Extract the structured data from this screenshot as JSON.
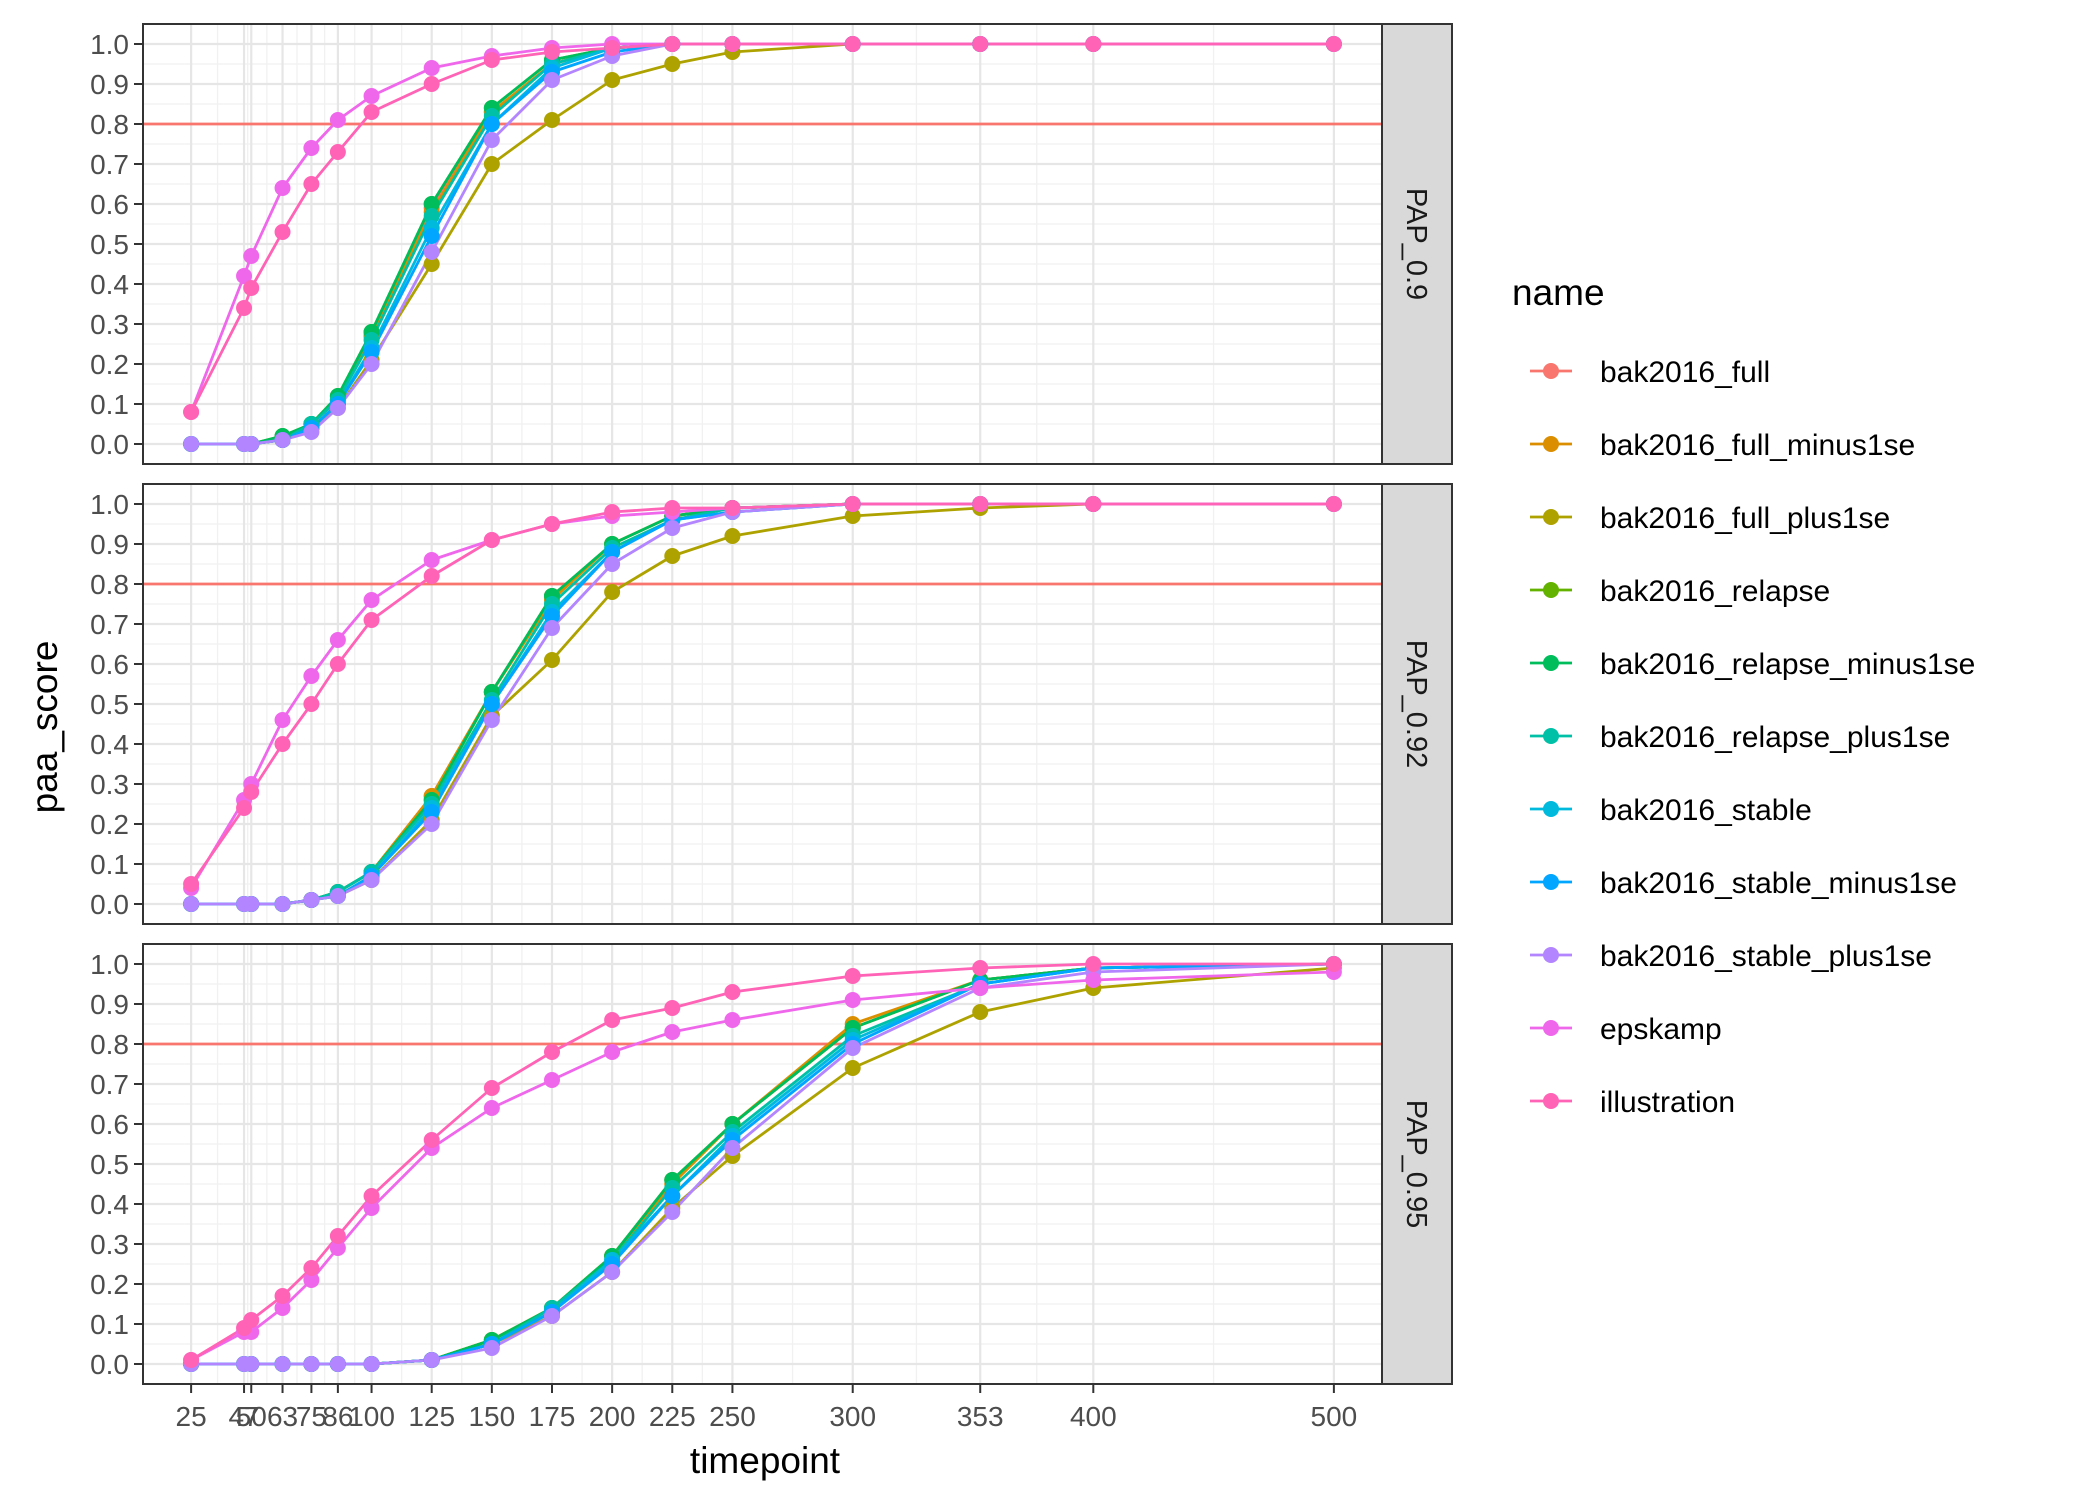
{
  "chart_data": {
    "type": "line",
    "xlabel": "timepoint",
    "ylabel": "paa_score",
    "x": [
      25,
      47,
      50,
      63,
      75,
      86,
      100,
      125,
      150,
      175,
      200,
      225,
      250,
      300,
      353,
      400,
      500
    ],
    "x_tick_labels": [
      "25",
      "47",
      "50",
      "63",
      "75",
      "86",
      "100",
      "125",
      "150",
      "175",
      "200",
      "225",
      "250",
      "300",
      "353",
      "400",
      "500"
    ],
    "xlim": [
      5,
      520
    ],
    "ylim": [
      -0.05,
      1.05
    ],
    "y_ticks": [
      0.0,
      0.1,
      0.2,
      0.3,
      0.4,
      0.5,
      0.6,
      0.7,
      0.8,
      0.9,
      1.0
    ],
    "y_tick_labels": [
      "0.0",
      "0.1",
      "0.2",
      "0.3",
      "0.4",
      "0.5",
      "0.6",
      "0.7",
      "0.8",
      "0.9",
      "1.0"
    ],
    "hline": 0.8,
    "hline_color": "#F8766D",
    "grid": true,
    "legend": {
      "title": "name",
      "position": "right",
      "items": [
        {
          "name": "bak2016_full",
          "color": "#F8766D"
        },
        {
          "name": "bak2016_full_minus1se",
          "color": "#DB8E00"
        },
        {
          "name": "bak2016_full_plus1se",
          "color": "#AEA200"
        },
        {
          "name": "bak2016_relapse",
          "color": "#64B200"
        },
        {
          "name": "bak2016_relapse_minus1se",
          "color": "#00BD5C"
        },
        {
          "name": "bak2016_relapse_plus1se",
          "color": "#00C1A7"
        },
        {
          "name": "bak2016_stable",
          "color": "#00BADE"
        },
        {
          "name": "bak2016_stable_minus1se",
          "color": "#00A6FF"
        },
        {
          "name": "bak2016_stable_plus1se",
          "color": "#B385FF"
        },
        {
          "name": "epskamp",
          "color": "#EF67EB"
        },
        {
          "name": "illustration",
          "color": "#FF63B6"
        }
      ]
    },
    "panels": [
      {
        "strip": "PAP_0.9",
        "series": [
          {
            "name": "bak2016_full",
            "values": [
              0.0,
              0.0,
              0.0,
              0.01,
              0.05,
              0.11,
              0.27,
              0.59,
              0.83,
              0.95,
              0.99,
              1.0,
              1.0,
              1.0,
              1.0,
              1.0,
              1.0
            ]
          },
          {
            "name": "bak2016_full_minus1se",
            "values": [
              0.0,
              0.0,
              0.0,
              0.01,
              0.05,
              0.11,
              0.27,
              0.58,
              0.83,
              0.95,
              0.99,
              1.0,
              1.0,
              1.0,
              1.0,
              1.0,
              1.0
            ]
          },
          {
            "name": "bak2016_full_plus1se",
            "values": [
              0.0,
              0.0,
              0.0,
              0.01,
              0.04,
              0.09,
              0.21,
              0.45,
              0.7,
              0.81,
              0.91,
              0.95,
              0.98,
              1.0,
              1.0,
              1.0,
              1.0
            ]
          },
          {
            "name": "bak2016_relapse",
            "values": [
              0.0,
              0.0,
              0.0,
              0.02,
              0.05,
              0.12,
              0.28,
              0.6,
              0.84,
              0.96,
              0.99,
              1.0,
              1.0,
              1.0,
              1.0,
              1.0,
              1.0
            ]
          },
          {
            "name": "bak2016_relapse_minus1se",
            "values": [
              0.0,
              0.0,
              0.0,
              0.02,
              0.05,
              0.12,
              0.28,
              0.6,
              0.84,
              0.96,
              0.99,
              1.0,
              1.0,
              1.0,
              1.0,
              1.0,
              1.0
            ]
          },
          {
            "name": "bak2016_relapse_plus1se",
            "values": [
              0.0,
              0.0,
              0.0,
              0.01,
              0.05,
              0.11,
              0.26,
              0.57,
              0.82,
              0.95,
              0.99,
              1.0,
              1.0,
              1.0,
              1.0,
              1.0,
              1.0
            ]
          },
          {
            "name": "bak2016_stable",
            "values": [
              0.0,
              0.0,
              0.0,
              0.01,
              0.04,
              0.1,
              0.24,
              0.54,
              0.8,
              0.94,
              0.99,
              1.0,
              1.0,
              1.0,
              1.0,
              1.0,
              1.0
            ]
          },
          {
            "name": "bak2016_stable_minus1se",
            "values": [
              0.0,
              0.0,
              0.0,
              0.01,
              0.04,
              0.1,
              0.23,
              0.52,
              0.8,
              0.93,
              0.98,
              1.0,
              1.0,
              1.0,
              1.0,
              1.0,
              1.0
            ]
          },
          {
            "name": "bak2016_stable_plus1se",
            "values": [
              0.0,
              0.0,
              0.0,
              0.01,
              0.03,
              0.09,
              0.2,
              0.48,
              0.76,
              0.91,
              0.97,
              1.0,
              1.0,
              1.0,
              1.0,
              1.0,
              1.0
            ]
          },
          {
            "name": "epskamp",
            "values": [
              0.08,
              0.42,
              0.47,
              0.64,
              0.74,
              0.81,
              0.87,
              0.94,
              0.97,
              0.99,
              1.0,
              1.0,
              1.0,
              1.0,
              1.0,
              1.0,
              1.0
            ]
          },
          {
            "name": "illustration",
            "values": [
              0.08,
              0.34,
              0.39,
              0.53,
              0.65,
              0.73,
              0.83,
              0.9,
              0.96,
              0.98,
              0.99,
              1.0,
              1.0,
              1.0,
              1.0,
              1.0,
              1.0
            ]
          }
        ]
      },
      {
        "strip": "PAP_0.92",
        "series": [
          {
            "name": "bak2016_full",
            "values": [
              0.0,
              0.0,
              0.0,
              0.0,
              0.01,
              0.03,
              0.08,
              0.27,
              0.53,
              0.77,
              0.9,
              0.97,
              0.99,
              1.0,
              1.0,
              1.0,
              1.0
            ]
          },
          {
            "name": "bak2016_full_minus1se",
            "values": [
              0.0,
              0.0,
              0.0,
              0.0,
              0.01,
              0.03,
              0.08,
              0.27,
              0.53,
              0.76,
              0.9,
              0.97,
              0.99,
              1.0,
              1.0,
              1.0,
              1.0
            ]
          },
          {
            "name": "bak2016_full_plus1se",
            "values": [
              0.0,
              0.0,
              0.0,
              0.0,
              0.01,
              0.02,
              0.06,
              0.21,
              0.47,
              0.61,
              0.78,
              0.87,
              0.92,
              0.97,
              0.99,
              1.0,
              1.0
            ]
          },
          {
            "name": "bak2016_relapse",
            "values": [
              0.0,
              0.0,
              0.0,
              0.0,
              0.01,
              0.03,
              0.08,
              0.26,
              0.53,
              0.77,
              0.9,
              0.97,
              0.99,
              1.0,
              1.0,
              1.0,
              1.0
            ]
          },
          {
            "name": "bak2016_relapse_minus1se",
            "values": [
              0.0,
              0.0,
              0.0,
              0.0,
              0.01,
              0.03,
              0.08,
              0.26,
              0.53,
              0.77,
              0.9,
              0.97,
              0.99,
              1.0,
              1.0,
              1.0,
              1.0
            ]
          },
          {
            "name": "bak2016_relapse_plus1se",
            "values": [
              0.0,
              0.0,
              0.0,
              0.0,
              0.01,
              0.03,
              0.08,
              0.25,
              0.51,
              0.75,
              0.89,
              0.96,
              0.99,
              1.0,
              1.0,
              1.0,
              1.0
            ]
          },
          {
            "name": "bak2016_stable",
            "values": [
              0.0,
              0.0,
              0.0,
              0.0,
              0.01,
              0.02,
              0.07,
              0.24,
              0.5,
              0.73,
              0.88,
              0.96,
              0.98,
              1.0,
              1.0,
              1.0,
              1.0
            ]
          },
          {
            "name": "bak2016_stable_minus1se",
            "values": [
              0.0,
              0.0,
              0.0,
              0.0,
              0.01,
              0.02,
              0.07,
              0.23,
              0.5,
              0.72,
              0.88,
              0.96,
              0.98,
              1.0,
              1.0,
              1.0,
              1.0
            ]
          },
          {
            "name": "bak2016_stable_plus1se",
            "values": [
              0.0,
              0.0,
              0.0,
              0.0,
              0.01,
              0.02,
              0.06,
              0.2,
              0.46,
              0.69,
              0.85,
              0.94,
              0.98,
              1.0,
              1.0,
              1.0,
              1.0
            ]
          },
          {
            "name": "epskamp",
            "values": [
              0.04,
              0.26,
              0.3,
              0.46,
              0.57,
              0.66,
              0.76,
              0.86,
              0.91,
              0.95,
              0.97,
              0.98,
              0.99,
              1.0,
              1.0,
              1.0,
              1.0
            ]
          },
          {
            "name": "illustration",
            "values": [
              0.05,
              0.24,
              0.28,
              0.4,
              0.5,
              0.6,
              0.71,
              0.82,
              0.91,
              0.95,
              0.98,
              0.99,
              0.99,
              1.0,
              1.0,
              1.0,
              1.0
            ]
          }
        ]
      },
      {
        "strip": "PAP_0.95",
        "series": [
          {
            "name": "bak2016_full",
            "values": [
              0.0,
              0.0,
              0.0,
              0.0,
              0.0,
              0.0,
              0.0,
              0.01,
              0.06,
              0.14,
              0.27,
              0.46,
              0.6,
              0.84,
              0.96,
              0.99,
              1.0
            ]
          },
          {
            "name": "bak2016_full_minus1se",
            "values": [
              0.0,
              0.0,
              0.0,
              0.0,
              0.0,
              0.0,
              0.0,
              0.01,
              0.06,
              0.14,
              0.27,
              0.45,
              0.6,
              0.85,
              0.96,
              0.99,
              1.0
            ]
          },
          {
            "name": "bak2016_full_plus1se",
            "values": [
              0.0,
              0.0,
              0.0,
              0.0,
              0.0,
              0.0,
              0.0,
              0.01,
              0.05,
              0.12,
              0.23,
              0.39,
              0.52,
              0.74,
              0.88,
              0.94,
              0.99
            ]
          },
          {
            "name": "bak2016_relapse",
            "values": [
              0.0,
              0.0,
              0.0,
              0.0,
              0.0,
              0.0,
              0.0,
              0.01,
              0.06,
              0.14,
              0.27,
              0.46,
              0.6,
              0.84,
              0.96,
              0.99,
              1.0
            ]
          },
          {
            "name": "bak2016_relapse_minus1se",
            "values": [
              0.0,
              0.0,
              0.0,
              0.0,
              0.0,
              0.0,
              0.0,
              0.01,
              0.06,
              0.14,
              0.27,
              0.46,
              0.6,
              0.84,
              0.96,
              0.99,
              1.0
            ]
          },
          {
            "name": "bak2016_relapse_plus1se",
            "values": [
              0.0,
              0.0,
              0.0,
              0.0,
              0.0,
              0.0,
              0.0,
              0.01,
              0.05,
              0.14,
              0.26,
              0.44,
              0.58,
              0.82,
              0.95,
              0.99,
              1.0
            ]
          },
          {
            "name": "bak2016_stable",
            "values": [
              0.0,
              0.0,
              0.0,
              0.0,
              0.0,
              0.0,
              0.0,
              0.01,
              0.05,
              0.13,
              0.26,
              0.42,
              0.57,
              0.81,
              0.95,
              0.99,
              1.0
            ]
          },
          {
            "name": "bak2016_stable_minus1se",
            "values": [
              0.0,
              0.0,
              0.0,
              0.0,
              0.0,
              0.0,
              0.0,
              0.01,
              0.05,
              0.13,
              0.25,
              0.42,
              0.56,
              0.8,
              0.95,
              0.99,
              1.0
            ]
          },
          {
            "name": "bak2016_stable_plus1se",
            "values": [
              0.0,
              0.0,
              0.0,
              0.0,
              0.0,
              0.0,
              0.0,
              0.01,
              0.04,
              0.12,
              0.23,
              0.38,
              0.54,
              0.79,
              0.94,
              0.98,
              1.0
            ]
          },
          {
            "name": "epskamp",
            "values": [
              0.01,
              0.08,
              0.08,
              0.14,
              0.21,
              0.29,
              0.39,
              0.54,
              0.64,
              0.71,
              0.78,
              0.83,
              0.86,
              0.91,
              0.94,
              0.96,
              0.98
            ]
          },
          {
            "name": "illustration",
            "values": [
              0.01,
              0.09,
              0.11,
              0.17,
              0.24,
              0.32,
              0.42,
              0.56,
              0.69,
              0.78,
              0.86,
              0.89,
              0.93,
              0.97,
              0.99,
              1.0,
              1.0
            ]
          }
        ]
      }
    ]
  }
}
